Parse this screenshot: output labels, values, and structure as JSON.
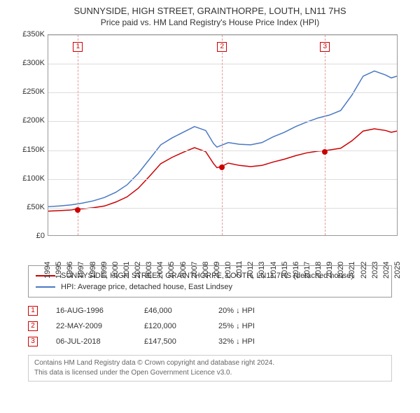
{
  "title": "SUNNYSIDE, HIGH STREET, GRAINTHORPE, LOUTH, LN11 7HS",
  "subtitle": "Price paid vs. HM Land Registry's House Price Index (HPI)",
  "chart": {
    "type": "line",
    "background_color": "#ffffff",
    "grid_color": "#dddddd",
    "axis_color": "#999999",
    "font_size_axis": 11,
    "y": {
      "min": 0,
      "max": 350000,
      "step": 50000,
      "labels": [
        "£0",
        "£50K",
        "£100K",
        "£150K",
        "£200K",
        "£250K",
        "£300K",
        "£350K"
      ]
    },
    "x": {
      "min": 1994,
      "max": 2025,
      "step": 1,
      "labels": [
        "1994",
        "1995",
        "1996",
        "1997",
        "1998",
        "1999",
        "2000",
        "2001",
        "2002",
        "2003",
        "2004",
        "2005",
        "2006",
        "2007",
        "2008",
        "2009",
        "2010",
        "2011",
        "2012",
        "2013",
        "2014",
        "2015",
        "2016",
        "2017",
        "2018",
        "2019",
        "2020",
        "2021",
        "2022",
        "2023",
        "2024",
        "2025"
      ]
    },
    "series": [
      {
        "name": "property",
        "label": "SUNNYSIDE, HIGH STREET, GRAINTHORPE, LOUTH, LN11 7HS (detached house)",
        "color": "#cc0000",
        "line_width": 1.5,
        "points": [
          [
            1994,
            42000
          ],
          [
            1995,
            43000
          ],
          [
            1996,
            44000
          ],
          [
            1996.63,
            46000
          ],
          [
            1997,
            46000
          ],
          [
            1998,
            48000
          ],
          [
            1999,
            51000
          ],
          [
            2000,
            58000
          ],
          [
            2001,
            67000
          ],
          [
            2002,
            82000
          ],
          [
            2003,
            103000
          ],
          [
            2004,
            125000
          ],
          [
            2005,
            136000
          ],
          [
            2006,
            145000
          ],
          [
            2007,
            153000
          ],
          [
            2008,
            146000
          ],
          [
            2008.7,
            125000
          ],
          [
            2009,
            118000
          ],
          [
            2009.39,
            120000
          ],
          [
            2010,
            126000
          ],
          [
            2011,
            122000
          ],
          [
            2012,
            120000
          ],
          [
            2013,
            122000
          ],
          [
            2014,
            128000
          ],
          [
            2015,
            133000
          ],
          [
            2016,
            139000
          ],
          [
            2017,
            144000
          ],
          [
            2018,
            147000
          ],
          [
            2018.51,
            147500
          ],
          [
            2019,
            149000
          ],
          [
            2020,
            152000
          ],
          [
            2021,
            165000
          ],
          [
            2022,
            182000
          ],
          [
            2023,
            186000
          ],
          [
            2024,
            183000
          ],
          [
            2024.5,
            180000
          ],
          [
            2025,
            182000
          ]
        ]
      },
      {
        "name": "hpi",
        "label": "HPI: Average price, detached house, East Lindsey",
        "color": "#4a78c4",
        "line_width": 1.5,
        "points": [
          [
            1994,
            50000
          ],
          [
            1995,
            51000
          ],
          [
            1996,
            53000
          ],
          [
            1997,
            56000
          ],
          [
            1998,
            60000
          ],
          [
            1999,
            66000
          ],
          [
            2000,
            75000
          ],
          [
            2001,
            88000
          ],
          [
            2002,
            108000
          ],
          [
            2003,
            133000
          ],
          [
            2004,
            158000
          ],
          [
            2005,
            170000
          ],
          [
            2006,
            180000
          ],
          [
            2007,
            190000
          ],
          [
            2008,
            183000
          ],
          [
            2008.7,
            160000
          ],
          [
            2009,
            154000
          ],
          [
            2010,
            162000
          ],
          [
            2011,
            159000
          ],
          [
            2012,
            158000
          ],
          [
            2013,
            162000
          ],
          [
            2014,
            172000
          ],
          [
            2015,
            180000
          ],
          [
            2016,
            190000
          ],
          [
            2017,
            198000
          ],
          [
            2018,
            205000
          ],
          [
            2019,
            210000
          ],
          [
            2020,
            218000
          ],
          [
            2021,
            245000
          ],
          [
            2022,
            278000
          ],
          [
            2023,
            287000
          ],
          [
            2024,
            280000
          ],
          [
            2024.5,
            275000
          ],
          [
            2025,
            278000
          ]
        ]
      }
    ],
    "event_lines": {
      "color": "#e59999",
      "style": "dashed",
      "events": [
        {
          "num": "1",
          "year": 1996.63,
          "price": 46000
        },
        {
          "num": "2",
          "year": 2009.39,
          "price": 120000
        },
        {
          "num": "3",
          "year": 2018.51,
          "price": 147500
        }
      ]
    },
    "marker_box": {
      "border_color": "#cc0000",
      "text_color": "#cc0000",
      "size": 14
    },
    "dot": {
      "color": "#cc0000",
      "radius": 4
    }
  },
  "legend": {
    "items": [
      {
        "color": "#cc0000",
        "label": "SUNNYSIDE, HIGH STREET, GRAINTHORPE, LOUTH, LN11 7HS (detached house)"
      },
      {
        "color": "#4a78c4",
        "label": "HPI: Average price, detached house, East Lindsey"
      }
    ]
  },
  "events_table": [
    {
      "num": "1",
      "date": "16-AUG-1996",
      "price": "£46,000",
      "pct": "20% ↓ HPI"
    },
    {
      "num": "2",
      "date": "22-MAY-2009",
      "price": "£120,000",
      "pct": "25% ↓ HPI"
    },
    {
      "num": "3",
      "date": "06-JUL-2018",
      "price": "£147,500",
      "pct": "32% ↓ HPI"
    }
  ],
  "attribution": {
    "line1": "Contains HM Land Registry data © Crown copyright and database right 2024.",
    "line2": "This data is licensed under the Open Government Licence v3.0."
  },
  "colors": {
    "marker_border": "#cc0000",
    "marker_text": "#cc0000"
  }
}
